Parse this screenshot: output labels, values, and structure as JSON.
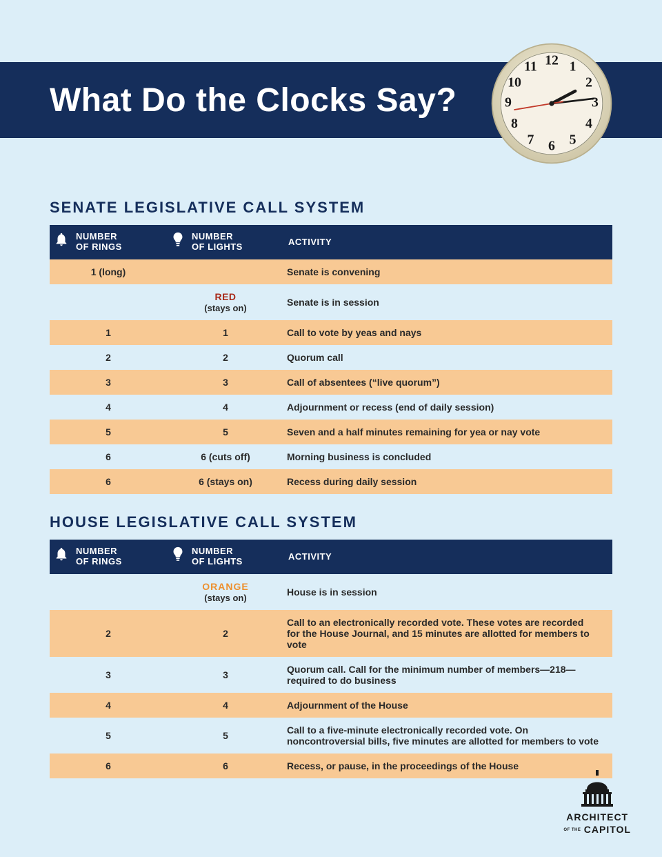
{
  "page": {
    "title": "What Do the Clocks Say?",
    "background_color": "#dceef8",
    "title_bar_color": "#152e5b",
    "title_text_color": "#ffffff"
  },
  "clock": {
    "face_color": "#f6f1e6",
    "rim_color": "#e7e0c8",
    "number_color": "#1a1a1a",
    "hand_color": "#1a1a1a",
    "second_hand_color": "#c23a2a",
    "hour": 2,
    "minute": 14,
    "second": 46
  },
  "sections": [
    {
      "title": "SENATE LEGISLATIVE CALL SYSTEM",
      "header": {
        "rings": "NUMBER\nOF RINGS",
        "lights": "NUMBER\nOF LIGHTS",
        "activity": "ACTIVITY"
      },
      "rows": [
        {
          "rings": "1 (long)",
          "lights_special": null,
          "lights": "",
          "activity": "Senate is convening",
          "stripe": "odd"
        },
        {
          "rings": "",
          "lights_special": {
            "label": "RED",
            "class": "red-label",
            "sub": "(stays on)"
          },
          "lights": "",
          "activity": "Senate is in session",
          "stripe": "even"
        },
        {
          "rings": "1",
          "lights": "1",
          "activity": "Call to vote by yeas and nays",
          "stripe": "odd"
        },
        {
          "rings": "2",
          "lights": "2",
          "activity": "Quorum call",
          "stripe": "even"
        },
        {
          "rings": "3",
          "lights": "3",
          "activity": "Call of absentees (“live quorum”)",
          "stripe": "odd"
        },
        {
          "rings": "4",
          "lights": "4",
          "activity": "Adjournment or recess (end of daily session)",
          "stripe": "even"
        },
        {
          "rings": "5",
          "lights": "5",
          "activity": "Seven and a half minutes remaining for yea or nay vote",
          "stripe": "odd"
        },
        {
          "rings": "6",
          "lights": "6 (cuts off)",
          "activity": "Morning business is concluded",
          "stripe": "even"
        },
        {
          "rings": "6",
          "lights": "6 (stays on)",
          "activity": "Recess during daily session",
          "stripe": "odd"
        }
      ]
    },
    {
      "title": "HOUSE LEGISLATIVE CALL SYSTEM",
      "header": {
        "rings": "NUMBER\nOF RINGS",
        "lights": "NUMBER\nOF LIGHTS",
        "activity": "ACTIVITY"
      },
      "rows": [
        {
          "rings": "",
          "lights_special": {
            "label": "ORANGE",
            "class": "orange-label",
            "sub": "(stays on)"
          },
          "lights": "",
          "activity": "House is in session",
          "stripe": "even"
        },
        {
          "rings": "2",
          "lights": "2",
          "activity": "Call to an electronically recorded vote. These votes are recorded for the House Journal, and 15 minutes are allotted for members to vote",
          "stripe": "odd"
        },
        {
          "rings": "3",
          "lights": "3",
          "activity": "Quorum call. Call for the minimum number of members—218—required to do business",
          "stripe": "even"
        },
        {
          "rings": "4",
          "lights": "4",
          "activity": "Adjournment of the House",
          "stripe": "odd"
        },
        {
          "rings": "5",
          "lights": "5",
          "activity": "Call to a five-minute electronically recorded vote. On noncontroversial bills, five minutes are allotted for members to vote",
          "stripe": "even"
        },
        {
          "rings": "6",
          "lights": "6",
          "activity": "Recess, or pause, in the proceedings of the House",
          "stripe": "odd"
        }
      ]
    }
  ],
  "footer": {
    "line1": "ARCHITECT",
    "line2": "OF THE",
    "line3": "CAPITOL"
  },
  "icons": {
    "bell": "bell-icon",
    "bulb": "bulb-icon"
  },
  "colors": {
    "stripe_odd": "#f8c994",
    "header_bg": "#152e5b",
    "section_title": "#152e5b"
  }
}
